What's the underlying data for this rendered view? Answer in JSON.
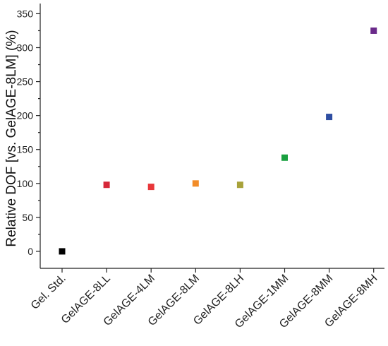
{
  "chart_data": {
    "type": "scatter",
    "title": "",
    "xlabel": "",
    "ylabel": "Relative DOF [vs. GelAGE-8LM] (%)",
    "ylim": [
      -25,
      365
    ],
    "yticks": [
      0,
      50,
      100,
      150,
      200,
      250,
      300,
      350
    ],
    "categories": [
      "Gel. Std.",
      "GelAGE-8LL",
      "GelAGE-4LM",
      "GelAGE-8LM",
      "GelAGE-8LH",
      "GelAGE-1MM",
      "GelAGE-8MM",
      "GelAGE-8MH"
    ],
    "values": [
      0,
      98,
      95,
      100,
      98,
      138,
      198,
      325
    ],
    "colors": [
      "#000000",
      "#d62839",
      "#e8373a",
      "#f28c28",
      "#a8a23a",
      "#1aa040",
      "#2e4ea2",
      "#6a2a8a"
    ],
    "grid": false,
    "marker": "square"
  }
}
